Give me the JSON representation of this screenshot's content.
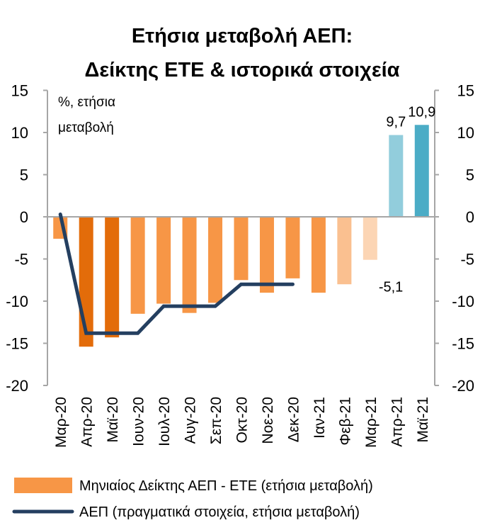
{
  "chart_data": {
    "type": "bar",
    "title": [
      "Ετήσια μεταβολή ΑΕΠ:",
      "Δείκτης ΕΤΕ & ιστορικά στοιχεία"
    ],
    "unit_note": [
      "%, ετήσια",
      "μεταβολή"
    ],
    "categories": [
      "Μαρ-20",
      "Απρ-20",
      "Μαϊ-20",
      "Ιουν-20",
      "Ιουλ-20",
      "Αυγ-20",
      "Σεπ-20",
      "Οκτ-20",
      "Νοε-20",
      "Δεκ-20",
      "Ιαν-21",
      "Φεβ-21",
      "Μαρ-21",
      "Απρ-21",
      "Μαϊ-21"
    ],
    "ylim": [
      -20,
      15
    ],
    "yticks": [
      15,
      10,
      5,
      0,
      -5,
      -10,
      -15,
      -20
    ],
    "ytick_labels": [
      "15",
      "10",
      "5",
      "0",
      "-5",
      "-10",
      "-15",
      "-20"
    ],
    "series": [
      {
        "name": "Μηνιαίος Δείκτης ΑΕΠ - ΕΤΕ (ετήσια μεταβολή)",
        "type": "bar",
        "color": "#F79646",
        "values": [
          -2.6,
          -15.4,
          -14.3,
          -11.5,
          -10.3,
          -11.4,
          -10.2,
          -7.5,
          -9.0,
          -7.3,
          -9.0,
          -8.0,
          -5.1,
          9.7,
          10.9
        ],
        "bar_colors": [
          "#F79646",
          "#E36C0A",
          "#E36C0A",
          "#F79646",
          "#F79646",
          "#F79646",
          "#F79646",
          "#F79646",
          "#F79646",
          "#F79646",
          "#F79646",
          "#FAC090",
          "#FCD5B4",
          "#92CDDC",
          "#4BACC6"
        ]
      },
      {
        "name": "ΑΕΠ (πραγματικά στοιχεία, ετήσια μεταβολή)",
        "type": "line",
        "color": "#243F60",
        "values": [
          0.3,
          -13.8,
          -13.8,
          -13.8,
          -10.6,
          -10.6,
          -10.6,
          -8.0,
          -8.0,
          -8.0,
          null,
          null,
          null,
          null,
          null
        ]
      }
    ],
    "data_labels": [
      {
        "category": "Μαρ-21",
        "text": "-5,1"
      },
      {
        "category": "Απρ-21",
        "text": "9,7"
      },
      {
        "category": "Μαϊ-21",
        "text": "10,9"
      }
    ],
    "legend": "bottom"
  }
}
